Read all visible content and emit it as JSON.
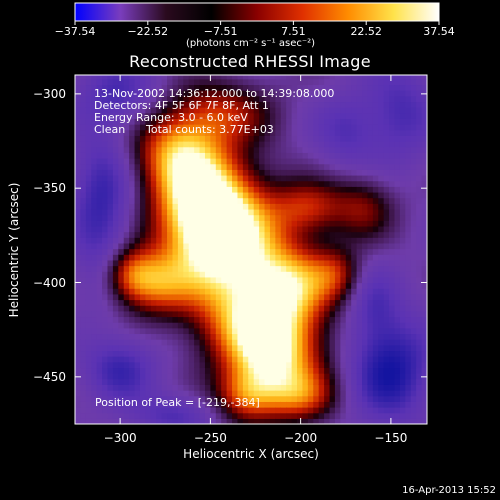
{
  "chart_data": {
    "type": "heatmap",
    "title": "Reconstructed RHESSI Image",
    "xlabel": "Heliocentric X (arcsec)",
    "ylabel": "Heliocentric Y (arcsec)",
    "xlim": [
      -325,
      -130
    ],
    "ylim": [
      -475,
      -290
    ],
    "x_ticks": [
      -300,
      -250,
      -200,
      -150
    ],
    "x_tick_labels": [
      "−300",
      "−250",
      "−200",
      "−150"
    ],
    "y_ticks": [
      -300,
      -350,
      -400,
      -450
    ],
    "y_tick_labels": [
      "−300",
      "−350",
      "−400",
      "−450"
    ],
    "colorbar": {
      "range": [
        -37.54,
        37.54
      ],
      "tick_labels": [
        "−37.54",
        "−22.52",
        "−7.51",
        "7.51",
        "22.52",
        "37.54"
      ],
      "unit_label": "(photons cm⁻² s⁻¹ asec⁻²)",
      "colors": [
        "#0000ff",
        "#7a3dbd",
        "#2a0a1e",
        "#000000",
        "#8a0000",
        "#e03000",
        "#ff8c00",
        "#ffe24a",
        "#ffffff"
      ]
    },
    "annotations": {
      "time_range": "13-Nov-2002 14:36:12.000 to 14:39:08.000",
      "detectors": "Detectors: 4F 5F 6F 7F 8F, Att 1",
      "energy": "Energy Range: 3.0 - 6.0 keV",
      "method": "Clean",
      "total_counts": "Total counts: 3.77E+03",
      "peak": "Position of Peak = [-219,-384]"
    },
    "peak": {
      "x": -219,
      "y": -384
    },
    "blobs": [
      {
        "x": -240,
        "y": -380,
        "sx": 22,
        "sy": 22,
        "a": 1.0
      },
      {
        "x": -255,
        "y": -355,
        "sx": 18,
        "sy": 20,
        "a": 0.9
      },
      {
        "x": -225,
        "y": -420,
        "sx": 22,
        "sy": 16,
        "a": 0.65
      },
      {
        "x": -215,
        "y": -440,
        "sx": 18,
        "sy": 16,
        "a": 0.8
      },
      {
        "x": -270,
        "y": -330,
        "sx": 16,
        "sy": 14,
        "a": 0.55
      },
      {
        "x": -245,
        "y": -310,
        "sx": 20,
        "sy": 12,
        "a": 0.45
      },
      {
        "x": -205,
        "y": -400,
        "sx": 16,
        "sy": 14,
        "a": 0.6
      },
      {
        "x": -280,
        "y": -400,
        "sx": 14,
        "sy": 12,
        "a": 0.55
      },
      {
        "x": -295,
        "y": -395,
        "sx": 10,
        "sy": 10,
        "a": 0.45
      },
      {
        "x": -195,
        "y": -360,
        "sx": 14,
        "sy": 10,
        "a": 0.45
      },
      {
        "x": -200,
        "y": -460,
        "sx": 14,
        "sy": 10,
        "a": 0.45
      },
      {
        "x": -165,
        "y": -360,
        "sx": 12,
        "sy": 12,
        "a": 0.35
      },
      {
        "x": -230,
        "y": -460,
        "sx": 12,
        "sy": 10,
        "a": 0.5
      },
      {
        "x": -180,
        "y": -395,
        "sx": 10,
        "sy": 10,
        "a": 0.35
      },
      {
        "x": -300,
        "y": -445,
        "sx": 14,
        "sy": 12,
        "a": -0.5
      },
      {
        "x": -150,
        "y": -445,
        "sx": 16,
        "sy": 20,
        "a": -0.7
      },
      {
        "x": -310,
        "y": -360,
        "sx": 12,
        "sy": 30,
        "a": -0.55
      },
      {
        "x": -145,
        "y": -310,
        "sx": 14,
        "sy": 18,
        "a": -0.45
      },
      {
        "x": -300,
        "y": -300,
        "sx": 16,
        "sy": 12,
        "a": -0.4
      },
      {
        "x": -175,
        "y": -320,
        "sx": 12,
        "sy": 14,
        "a": -0.35
      },
      {
        "x": -270,
        "y": -470,
        "sx": 16,
        "sy": 8,
        "a": -0.4
      },
      {
        "x": -160,
        "y": -410,
        "sx": 10,
        "sy": 14,
        "a": -0.3
      }
    ]
  },
  "footer": {
    "timestamp": "16-Apr-2013 15:52"
  }
}
